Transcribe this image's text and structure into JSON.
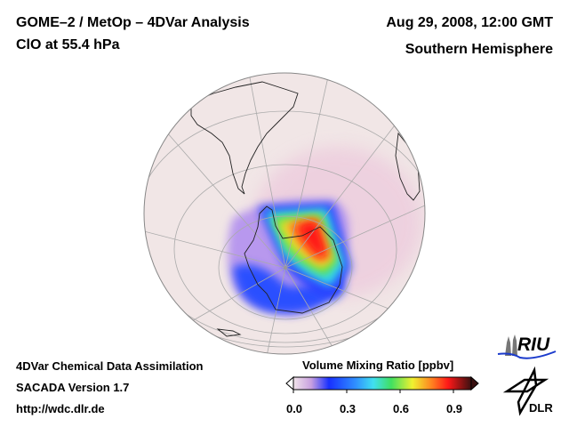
{
  "header": {
    "title_line1": "GOME–2 / MetOp – 4DVar Analysis",
    "title_line2": "ClO at 55.4 hPa",
    "date": "Aug 29, 2008, 12:00 GMT",
    "region": "Southern Hemisphere"
  },
  "footer": {
    "line1": "4DVar Chemical Data Assimilation",
    "line2": "SACADA Version 1.7",
    "line3": "http://wdc.dlr.de"
  },
  "colorbar": {
    "label": "Volume Mixing Ratio [ppbv]",
    "ticks": [
      "0.0",
      "0.3",
      "0.6",
      "0.9"
    ],
    "range": [
      0.0,
      1.0
    ],
    "colors": [
      "#f0e0e6",
      "#c9a0e0",
      "#2040ff",
      "#30c0ff",
      "#40e060",
      "#f0f030",
      "#ff2020",
      "#401010"
    ]
  },
  "logos": {
    "riu": "RIU",
    "dlr": "DLR"
  }
}
